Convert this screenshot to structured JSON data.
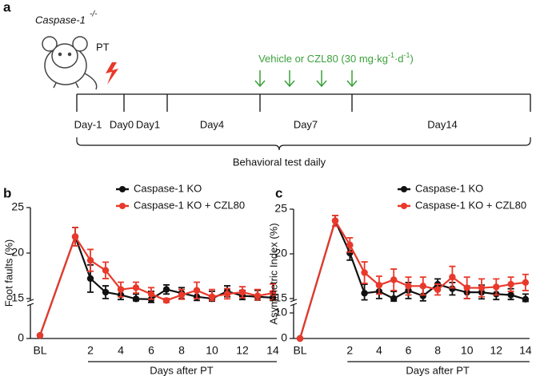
{
  "panel_a": {
    "label": "a",
    "genotype": "Caspase-1",
    "genotype_sup": "-/-",
    "injury": "PT",
    "treatment": [
      "Vehicle or CZL80 (30 mg·kg",
      "-1",
      "·d",
      "-1",
      ")"
    ],
    "days": [
      "Day-1",
      "Day0",
      "Day1",
      "Day4",
      "Day7",
      "Day14"
    ],
    "bracket_label": "Behavioral test daily"
  },
  "chart_data": [
    {
      "type": "line",
      "panel_label": "b",
      "ylabel": "Foot faults (%)",
      "xlabel": "Days after PT",
      "categories": [
        "BL",
        null,
        "2",
        null,
        "4",
        null,
        "6",
        null,
        "8",
        null,
        "10",
        null,
        "12",
        null,
        "14"
      ],
      "ylim": [
        0,
        25
      ],
      "yticks": [
        0,
        15,
        20,
        25
      ],
      "legend": "upper center",
      "series": [
        {
          "name": "Caspase-1 KO",
          "color": "#111111",
          "values": [
            1.2,
            21.8,
            17.2,
            15.7,
            15.4,
            14.9,
            14.8,
            16.0,
            15.6,
            15.2,
            15.0,
            15.8,
            15.3,
            15.2,
            15.1
          ],
          "errors": [
            0.3,
            1.0,
            1.5,
            0.7,
            0.7,
            0.6,
            1.0,
            0.5,
            0.6,
            0.8,
            0.8,
            0.6,
            0.6,
            0.7,
            0.7
          ]
        },
        {
          "name": "Caspase-1 KO + CZL80",
          "color": "#e8392b",
          "values": [
            1.2,
            21.8,
            19.2,
            18.1,
            16.0,
            16.2,
            15.5,
            14.4,
            15.4,
            15.9,
            15.2,
            15.5,
            15.7,
            15.3,
            15.6
          ],
          "errors": [
            0.3,
            1.0,
            1.2,
            0.9,
            0.8,
            0.6,
            0.7,
            0.6,
            0.6,
            0.9,
            0.8,
            0.6,
            0.6,
            0.7,
            1.0
          ]
        }
      ]
    },
    {
      "type": "line",
      "panel_label": "c",
      "ylabel": "Asymmetric Index (%)",
      "xlabel": "Days after PT",
      "categories": [
        "BL",
        null,
        "2",
        null,
        "4",
        null,
        "6",
        null,
        "8",
        null,
        "10",
        null,
        "12",
        null,
        "14"
      ],
      "ylim": [
        0,
        25
      ],
      "yticks": [
        0,
        10,
        15,
        20,
        25
      ],
      "legend": "upper center",
      "series": [
        {
          "name": "Caspase-1 KO",
          "color": "#111111",
          "values": [
            0,
            23.7,
            20.1,
            15.6,
            15.8,
            15.0,
            15.9,
            15.3,
            16.6,
            16.1,
            15.7,
            15.7,
            15.5,
            15.4,
            14.8
          ],
          "errors": [
            0.3,
            0.6,
            0.8,
            1.0,
            0.8,
            0.8,
            0.9,
            1.0,
            0.6,
            0.7,
            0.7,
            0.8,
            0.8,
            0.7,
            0.7
          ]
        },
        {
          "name": "Caspase-1 KO + CZL80",
          "color": "#e8392b",
          "values": [
            0,
            23.7,
            21.0,
            17.9,
            16.5,
            17.1,
            16.4,
            16.4,
            16.0,
            17.4,
            16.2,
            16.2,
            16.3,
            16.6,
            16.8
          ],
          "errors": [
            0.3,
            0.6,
            0.8,
            1.2,
            1.0,
            1.2,
            1.0,
            1.0,
            0.6,
            1.2,
            1.2,
            1.0,
            0.9,
            0.8,
            0.9
          ]
        }
      ]
    }
  ]
}
